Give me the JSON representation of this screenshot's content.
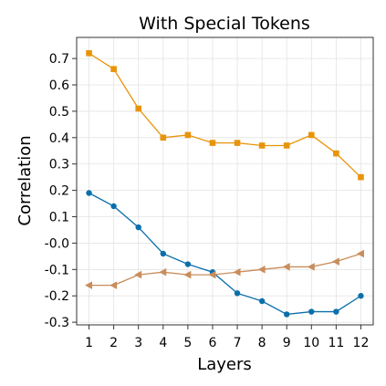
{
  "chart_data": {
    "type": "line",
    "title": "With Special Tokens",
    "xlabel": "Layers",
    "ylabel": "Correlation",
    "x": [
      1,
      2,
      3,
      4,
      5,
      6,
      7,
      8,
      9,
      10,
      11,
      12
    ],
    "xlim": [
      0.5,
      12.5
    ],
    "ylim": [
      -0.31,
      0.78
    ],
    "yticks": [
      0.7,
      0.6,
      0.5,
      0.4,
      0.3,
      0.2,
      0.1,
      0.0,
      -0.1,
      -0.2,
      -0.3
    ],
    "ytick_labels": [
      "0.7",
      "0.6",
      "0.5",
      "0.4",
      "0.3",
      "0.2",
      "0.1",
      "-0.0",
      "-0.1",
      "-0.2",
      "-0.3"
    ],
    "xtick_labels": [
      "1",
      "2",
      "3",
      "4",
      "5",
      "6",
      "7",
      "8",
      "9",
      "10",
      "11",
      "12"
    ],
    "grid": true,
    "legend": false,
    "series": [
      {
        "color": "#e8940b",
        "marker": "square",
        "values": [
          0.72,
          0.66,
          0.51,
          0.4,
          0.41,
          0.38,
          0.38,
          0.37,
          0.37,
          0.41,
          0.34,
          0.25
        ]
      },
      {
        "color": "#0b6fab",
        "marker": "circle",
        "values": [
          0.19,
          0.14,
          0.06,
          -0.04,
          -0.08,
          -0.11,
          -0.19,
          -0.22,
          -0.27,
          -0.26,
          -0.26,
          -0.2
        ]
      },
      {
        "color": "#c98d5c",
        "marker": "triangle-left",
        "values": [
          -0.16,
          -0.16,
          -0.12,
          -0.11,
          -0.12,
          -0.12,
          -0.11,
          -0.1,
          -0.09,
          -0.09,
          -0.07,
          -0.04
        ]
      }
    ]
  }
}
